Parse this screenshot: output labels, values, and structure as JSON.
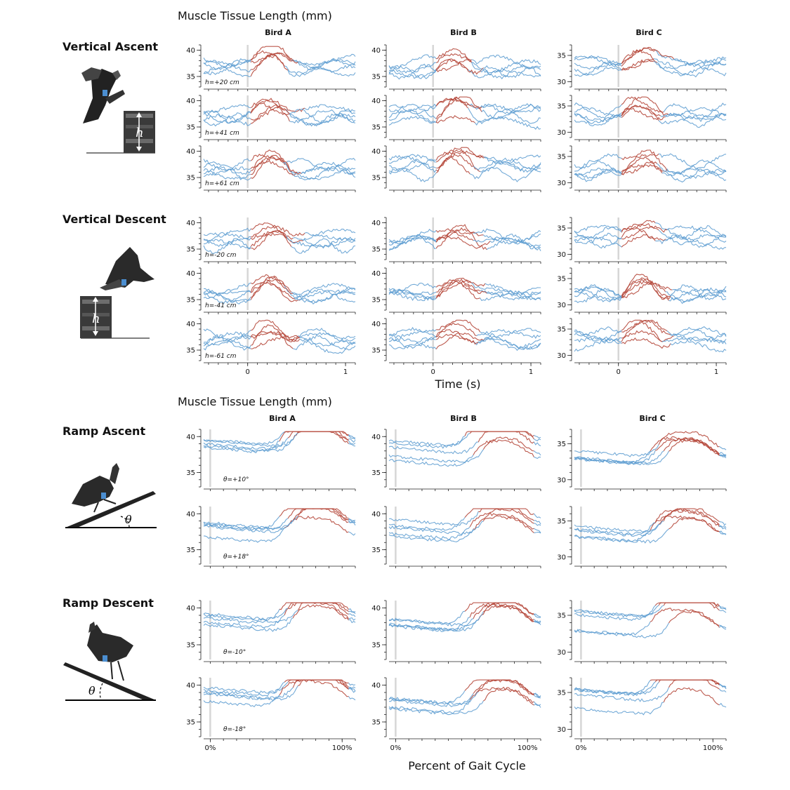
{
  "figure": {
    "section1_header": "Muscle Tissue Length (mm)",
    "section2_header": "Muscle Tissue Length (mm)",
    "section1_xlabel": "Time (s)",
    "section2_xlabel": "Percent of Gait Cycle",
    "bird_labels": [
      "Bird A",
      "Bird B",
      "Bird C"
    ],
    "conditions": [
      "Vertical Ascent",
      "Vertical Descent",
      "Ramp Ascent",
      "Ramp Descent"
    ],
    "illustration_labels": {
      "h": "h",
      "theta": "θ"
    },
    "colors": {
      "stance_trace": "#5b9bd0",
      "swing_trace": "#b5473a",
      "zero_line": "#d6d6d6"
    }
  },
  "chart_data": [
    {
      "type": "line",
      "title": "Vertical Ascent / Descent",
      "xlabel": "Time (s)",
      "ylabel": "Muscle Tissue Length (mm)",
      "x_ticks": [
        "0",
        "1"
      ],
      "xlim": [
        -0.45,
        1.1
      ],
      "ylim_bird_ab": [
        33,
        41
      ],
      "ylim_bird_c": [
        29,
        37
      ],
      "y_ticks_bird_ab": [
        "35",
        "40"
      ],
      "y_ticks_bird_c": [
        "30",
        "35"
      ],
      "rows": [
        {
          "condition": "Vertical Ascent",
          "label": "h=+20 cm"
        },
        {
          "condition": "Vertical Ascent",
          "label": "h=+41 cm"
        },
        {
          "condition": "Vertical Ascent",
          "label": "h=+61 cm"
        },
        {
          "condition": "Vertical Descent",
          "label": "h=-20 cm"
        },
        {
          "condition": "Vertical Descent",
          "label": "h=-41 cm"
        },
        {
          "condition": "Vertical Descent",
          "label": "h=-61 cm"
        }
      ],
      "series": [
        {
          "role": "stance",
          "color": "#5b9bd0"
        },
        {
          "role": "swing",
          "color": "#b5473a"
        }
      ]
    },
    {
      "type": "line",
      "title": "Ramp Ascent / Descent",
      "xlabel": "Percent of Gait Cycle",
      "ylabel": "Muscle Tissue Length (mm)",
      "x_ticks": [
        "0%",
        "100%"
      ],
      "xlim": [
        -0.05,
        1.1
      ],
      "ylim_bird_ab": [
        33,
        41
      ],
      "ylim_bird_c": [
        29,
        37
      ],
      "y_ticks_bird_ab": [
        "35",
        "40"
      ],
      "y_ticks_bird_c": [
        "30",
        "35"
      ],
      "rows": [
        {
          "condition": "Ramp Ascent",
          "label": "θ=+10°"
        },
        {
          "condition": "Ramp Ascent",
          "label": "θ=+18°"
        },
        {
          "condition": "Ramp Descent",
          "label": "θ=-10°"
        },
        {
          "condition": "Ramp Descent",
          "label": "θ=-18°"
        }
      ],
      "series": [
        {
          "role": "stance",
          "color": "#5b9bd0"
        },
        {
          "role": "swing",
          "color": "#b5473a"
        }
      ]
    }
  ]
}
